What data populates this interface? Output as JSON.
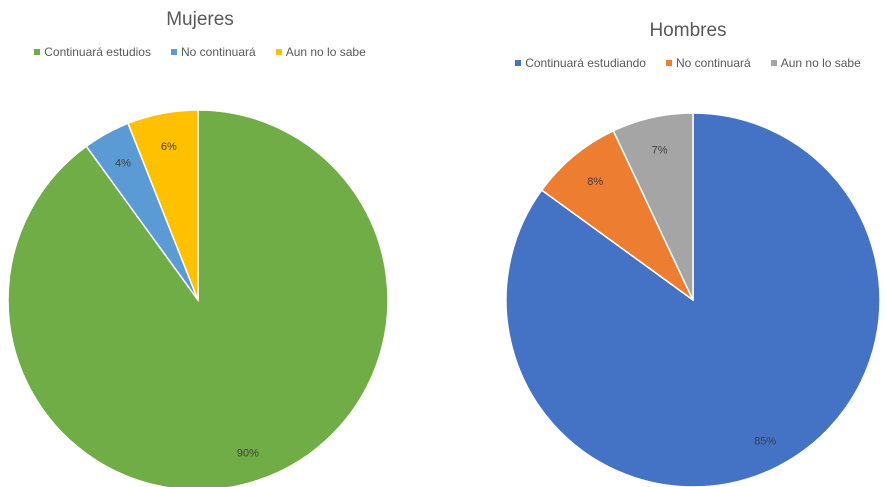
{
  "chart_data": [
    {
      "type": "pie",
      "title": "Mujeres",
      "legend_position": "top",
      "categories": [
        "Continuará estudios",
        "No continuará",
        "Aun no lo sabe"
      ],
      "values": [
        90,
        4,
        6
      ],
      "data_labels": [
        "90%",
        "4%",
        "6%"
      ],
      "colors": [
        "#70AD47",
        "#5B9BD5",
        "#FFC000"
      ]
    },
    {
      "type": "pie",
      "title": "Hombres",
      "legend_position": "top",
      "categories": [
        "Continuará estudiando",
        "No continuará",
        "Aun no lo sabe"
      ],
      "values": [
        85,
        8,
        7
      ],
      "data_labels": [
        "85%",
        "8%",
        "7%"
      ],
      "colors": [
        "#4472C4",
        "#ED7D31",
        "#A5A5A5"
      ]
    }
  ]
}
